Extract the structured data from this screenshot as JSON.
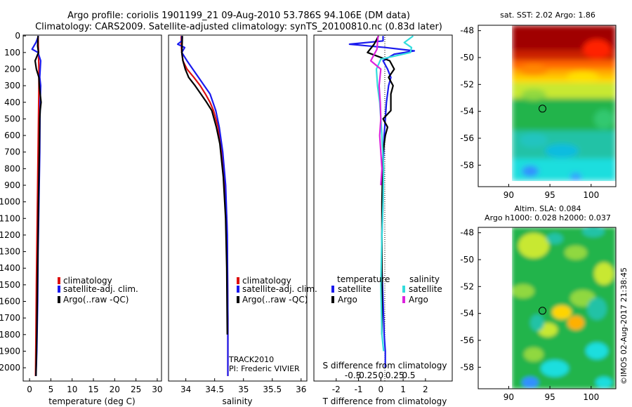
{
  "title_line1": "Argo profile: coriolis 1901199_21 09-Aug-2010 53.786S 94.106E (DM data)",
  "title_line2": "Climatology: CARS2009. Satellite-adjusted climatology: synTS_20100810.nc (0.83d later)",
  "credit": "©IMOS 02-Aug-2017 21:38:45",
  "colors": {
    "clim": "#dd1111",
    "sat": "#1a1aee",
    "argo": "#000000",
    "sat_s": "#33dddd",
    "argo_s": "#dd22dd"
  },
  "chart_data": [
    {
      "type": "line",
      "xlabel": "temperature (deg C)",
      "xlim": [
        -1.5,
        31
      ],
      "ylim": [
        2080,
        -5
      ],
      "xticks": [
        "0",
        "5",
        "10",
        "15",
        "20",
        "25",
        "30"
      ],
      "yticks": [
        "0",
        "100",
        "200",
        "300",
        "400",
        "500",
        "600",
        "700",
        "800",
        "900",
        "1000",
        "1100",
        "1200",
        "1300",
        "1400",
        "1500",
        "1600",
        "1700",
        "1800",
        "1900",
        "2000"
      ],
      "legend": [
        "climatology",
        "satellite-adj. clim.",
        "Argo(..raw -QC)"
      ],
      "series": [
        {
          "name": "climatology",
          "x": [
            2.0,
            2.05,
            2.1,
            2.15,
            2.2,
            2.2,
            2.15,
            2.1,
            2.0,
            1.9,
            1.8,
            1.7,
            1.6,
            1.5,
            1.4
          ],
          "y": [
            0,
            50,
            100,
            150,
            200,
            300,
            400,
            500,
            700,
            900,
            1100,
            1300,
            1500,
            1800,
            2050
          ]
        },
        {
          "name": "satellite-adj. clim.",
          "x": [
            2.1,
            1.5,
            0.6,
            2.0,
            2.6,
            2.4,
            2.6,
            2.5,
            2.45,
            2.4,
            2.2,
            2.0,
            1.9,
            1.7,
            1.5
          ],
          "y": [
            0,
            40,
            80,
            100,
            150,
            250,
            300,
            400,
            500,
            700,
            1000,
            1300,
            1600,
            1900,
            2050
          ]
        },
        {
          "name": "Argo(..raw -QC)",
          "x": [
            2.0,
            1.9,
            2.1,
            1.3,
            1.6,
            2.2,
            2.3,
            2.5,
            2.7,
            2.5,
            2.4,
            2.3,
            2.1,
            1.9,
            1.7,
            1.5
          ],
          "y": [
            0,
            60,
            100,
            150,
            200,
            250,
            300,
            350,
            400,
            450,
            500,
            700,
            1000,
            1400,
            1800,
            2050
          ]
        }
      ]
    },
    {
      "type": "line",
      "xlabel": "salinity",
      "xlim": [
        33.7,
        36.1
      ],
      "ylim": [
        2080,
        -5
      ],
      "xticks": [
        "34",
        "34.5",
        "35",
        "35.5",
        "36"
      ],
      "legend": [
        "climatology",
        "satellite-adj. clim.",
        "Argo(..raw -QC)"
      ],
      "annotations": [
        "TRACK2010",
        "PI: Frederic VIVIER"
      ],
      "series": [
        {
          "name": "climatology",
          "x": [
            33.92,
            33.92,
            33.93,
            33.95,
            34.02,
            34.14,
            34.25,
            34.34,
            34.42,
            34.48,
            34.56,
            34.62,
            34.66,
            34.71,
            34.72,
            34.73,
            34.73
          ],
          "y": [
            0,
            50,
            100,
            150,
            200,
            250,
            300,
            350,
            400,
            450,
            550,
            700,
            850,
            1100,
            1300,
            1700,
            2050
          ]
        },
        {
          "name": "satellite-adj. clim.",
          "x": [
            33.93,
            33.93,
            33.86,
            33.98,
            33.93,
            34.02,
            34.12,
            34.22,
            34.32,
            34.42,
            34.52,
            34.58,
            34.64,
            34.69,
            34.72,
            34.73,
            34.73
          ],
          "y": [
            0,
            30,
            50,
            70,
            100,
            150,
            200,
            250,
            300,
            350,
            450,
            550,
            700,
            900,
            1200,
            1700,
            2050
          ]
        },
        {
          "name": "Argo(..raw -QC)",
          "x": [
            33.94,
            33.93,
            33.95,
            33.99,
            34.05,
            34.16,
            34.26,
            34.36,
            34.45,
            34.53,
            34.59,
            34.65,
            34.69,
            34.71,
            34.72
          ],
          "y": [
            0,
            100,
            150,
            200,
            250,
            300,
            350,
            400,
            450,
            550,
            650,
            850,
            1100,
            1400,
            1800
          ]
        }
      ]
    },
    {
      "type": "line",
      "xlabel": "T difference from climatology",
      "xlabel_top": "S difference from climatology",
      "xlim": [
        -3,
        3.2
      ],
      "ylim": [
        2080,
        -5
      ],
      "xticks": [
        "-2",
        "-1",
        "0",
        "1",
        "2"
      ],
      "xticks_top": [
        "-0.5",
        "-0.25",
        "0",
        "0.25",
        "0.5"
      ],
      "legend_titles": [
        "temperature",
        "salinity"
      ],
      "legend": [
        "satellite",
        "Argo",
        "satellite",
        "Argo"
      ],
      "series": [
        {
          "name": "satellite",
          "x": [
            0.1,
            0.1,
            -1.4,
            0.2,
            1.5,
            0.6,
            0.1,
            0.3,
            0.45,
            0.35,
            0.25,
            0.2,
            0.15,
            0.1,
            0.1,
            0.05,
            0.05,
            0.1,
            0.15,
            0.2,
            0.2
          ],
          "y": [
            0,
            30,
            50,
            70,
            90,
            110,
            150,
            200,
            250,
            300,
            400,
            500,
            600,
            800,
            1000,
            1200,
            1400,
            1600,
            1800,
            1900,
            2000
          ]
        },
        {
          "name": "Argo",
          "x": [
            -0.1,
            -0.3,
            -0.6,
            0.4,
            0.6,
            0.35,
            0.55,
            0.45,
            0.45,
            0.45,
            0.1,
            0.3,
            0.2,
            0.1,
            0.05,
            0.05
          ],
          "y": [
            0,
            50,
            100,
            150,
            200,
            250,
            300,
            350,
            400,
            450,
            500,
            550,
            600,
            700,
            1000,
            1800
          ]
        },
        {
          "name": "satellite",
          "x": [
            0.58,
            0.42,
            0.55,
            0.53,
            0.0,
            -0.08,
            -0.06,
            -0.02,
            0.0,
            0.02,
            0.05,
            0.04,
            0.02,
            0.0,
            0.02,
            0.05
          ],
          "y": [
            0,
            40,
            70,
            100,
            140,
            200,
            300,
            400,
            500,
            600,
            800,
            1000,
            1200,
            1500,
            1800,
            1900
          ]
        },
        {
          "name": "Argo",
          "x": [
            -0.05,
            -0.07,
            -0.18,
            0.0,
            -0.03,
            -0.01,
            0.0,
            -0.02,
            0.0,
            0.02,
            0.0
          ],
          "y": [
            0,
            80,
            150,
            200,
            300,
            400,
            500,
            600,
            700,
            800,
            900
          ]
        }
      ]
    },
    {
      "type": "heatmap",
      "title": "sat. SST: 2.02 Argo: 1.86",
      "xticks": [
        "90",
        "95",
        "100"
      ],
      "yticks": [
        "-48",
        "-50",
        "-52",
        "-54",
        "-56",
        "-58"
      ],
      "marker": {
        "lon": 94.1,
        "lat": -53.8
      }
    },
    {
      "type": "heatmap",
      "title_line1": "Altim. SLA: 0.084",
      "title_line2": "Argo h1000: 0.028 h2000: 0.037",
      "xticks": [
        "90",
        "95",
        "100"
      ],
      "yticks": [
        "-48",
        "-50",
        "-52",
        "-54",
        "-56",
        "-58"
      ],
      "marker": {
        "lon": 94.1,
        "lat": -53.8
      }
    }
  ]
}
